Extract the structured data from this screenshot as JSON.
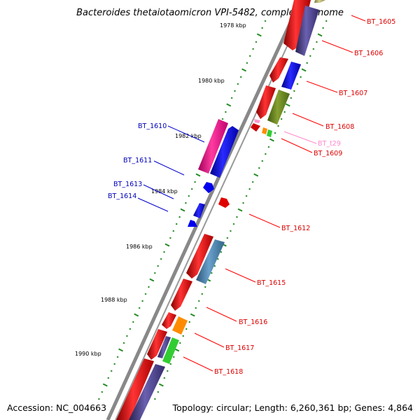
{
  "title": "Bacteroides thetaiotaomicron VPI-5482, complete genome",
  "footer": {
    "accession": "Accession: NC_004663",
    "summary": "Topology: circular; Length: 6,260,361 bp; Genes: 4,864"
  },
  "kbp_labels": [
    "1978 kbp",
    "1980 kbp",
    "1982 kbp",
    "1984 kbp",
    "1986 kbp",
    "1988 kbp",
    "1990 kbp"
  ],
  "gene_labels": [
    {
      "text": "BT_1605",
      "color": "#dd0000"
    },
    {
      "text": "BT_1606",
      "color": "#dd0000"
    },
    {
      "text": "BT_1607",
      "color": "#dd0000"
    },
    {
      "text": "BT_1608",
      "color": "#dd0000"
    },
    {
      "text": "BT_t29",
      "color": "#ff88cc"
    },
    {
      "text": "BT_1609",
      "color": "#dd0000"
    },
    {
      "text": "BT_1610",
      "color": "#0000bb"
    },
    {
      "text": "BT_1611",
      "color": "#0000bb"
    },
    {
      "text": "BT_1613",
      "color": "#0000bb"
    },
    {
      "text": "BT_1614",
      "color": "#0000bb"
    },
    {
      "text": "BT_1612",
      "color": "#dd0000"
    },
    {
      "text": "BT_1615",
      "color": "#dd0000"
    },
    {
      "text": "BT_1616",
      "color": "#dd0000"
    },
    {
      "text": "BT_1617",
      "color": "#dd0000"
    },
    {
      "text": "BT_1618",
      "color": "#dd0000"
    }
  ],
  "colors": {
    "red": "#ff0000",
    "blue": "#0000ff",
    "magenta": "#ff1493",
    "olive": "#6b8e23",
    "steel": "#4682b4",
    "orange": "#ff8c00",
    "green": "#32cd32",
    "purple": "#483d8b",
    "khaki": "#bdb76b",
    "backbone": "#888888",
    "ticks": "#228b22"
  }
}
